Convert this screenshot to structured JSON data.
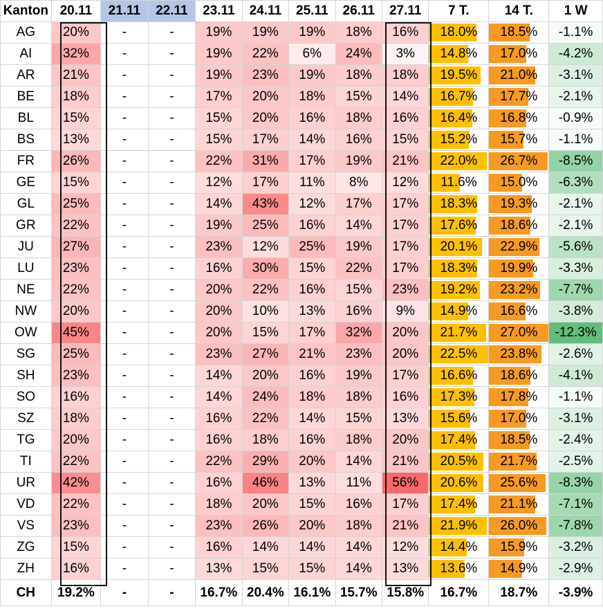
{
  "table": {
    "headers": [
      "Kanton",
      "20.11",
      "21.11",
      "22.11",
      "23.11",
      "24.11",
      "25.11",
      "26.11",
      "27.11",
      "7 T.",
      "14 T.",
      "1 W"
    ],
    "highlighted_headers": [
      "21.11",
      "22.11"
    ],
    "bar_scales": {
      "seven_day_max": 22.5,
      "fourteen_day_max": 27.0
    },
    "rows": [
      {
        "kanton": "AG",
        "daily": [
          "20%",
          "-",
          "-",
          "19%",
          "19%",
          "19%",
          "18%",
          "16%"
        ],
        "seven_day": "18.0%",
        "fourteen_day": "18.5%",
        "one_week": "-1.1%"
      },
      {
        "kanton": "AI",
        "daily": [
          "32%",
          "-",
          "-",
          "19%",
          "22%",
          "6%",
          "24%",
          "3%"
        ],
        "seven_day": "14.8%",
        "fourteen_day": "17.0%",
        "one_week": "-4.2%"
      },
      {
        "kanton": "AR",
        "daily": [
          "21%",
          "-",
          "-",
          "19%",
          "23%",
          "19%",
          "18%",
          "18%"
        ],
        "seven_day": "19.5%",
        "fourteen_day": "21.0%",
        "one_week": "-3.1%"
      },
      {
        "kanton": "BE",
        "daily": [
          "18%",
          "-",
          "-",
          "17%",
          "20%",
          "18%",
          "15%",
          "14%"
        ],
        "seven_day": "16.7%",
        "fourteen_day": "17.7%",
        "one_week": "-2.1%"
      },
      {
        "kanton": "BL",
        "daily": [
          "15%",
          "-",
          "-",
          "15%",
          "20%",
          "16%",
          "18%",
          "16%"
        ],
        "seven_day": "16.4%",
        "fourteen_day": "16.8%",
        "one_week": "-0.9%"
      },
      {
        "kanton": "BS",
        "daily": [
          "13%",
          "-",
          "-",
          "15%",
          "17%",
          "14%",
          "16%",
          "15%"
        ],
        "seven_day": "15.2%",
        "fourteen_day": "15.7%",
        "one_week": "-1.1%"
      },
      {
        "kanton": "FR",
        "daily": [
          "26%",
          "-",
          "-",
          "22%",
          "31%",
          "17%",
          "19%",
          "21%"
        ],
        "seven_day": "22.0%",
        "fourteen_day": "26.7%",
        "one_week": "-8.5%"
      },
      {
        "kanton": "GE",
        "daily": [
          "15%",
          "-",
          "-",
          "12%",
          "17%",
          "11%",
          "8%",
          "12%"
        ],
        "seven_day": "11.6%",
        "fourteen_day": "15.0%",
        "one_week": "-6.3%"
      },
      {
        "kanton": "GL",
        "daily": [
          "25%",
          "-",
          "-",
          "14%",
          "43%",
          "12%",
          "17%",
          "17%"
        ],
        "seven_day": "18.3%",
        "fourteen_day": "19.3%",
        "one_week": "-2.1%"
      },
      {
        "kanton": "GR",
        "daily": [
          "22%",
          "-",
          "-",
          "19%",
          "25%",
          "16%",
          "14%",
          "17%"
        ],
        "seven_day": "17.6%",
        "fourteen_day": "18.6%",
        "one_week": "-2.1%"
      },
      {
        "kanton": "JU",
        "daily": [
          "27%",
          "-",
          "-",
          "23%",
          "12%",
          "25%",
          "19%",
          "17%"
        ],
        "seven_day": "20.1%",
        "fourteen_day": "22.9%",
        "one_week": "-5.6%"
      },
      {
        "kanton": "LU",
        "daily": [
          "23%",
          "-",
          "-",
          "16%",
          "30%",
          "15%",
          "22%",
          "17%"
        ],
        "seven_day": "18.3%",
        "fourteen_day": "19.9%",
        "one_week": "-3.3%"
      },
      {
        "kanton": "NE",
        "daily": [
          "22%",
          "-",
          "-",
          "20%",
          "22%",
          "16%",
          "15%",
          "23%"
        ],
        "seven_day": "19.2%",
        "fourteen_day": "23.2%",
        "one_week": "-7.7%"
      },
      {
        "kanton": "NW",
        "daily": [
          "20%",
          "-",
          "-",
          "20%",
          "10%",
          "13%",
          "16%",
          "9%"
        ],
        "seven_day": "14.9%",
        "fourteen_day": "16.6%",
        "one_week": "-3.8%"
      },
      {
        "kanton": "OW",
        "daily": [
          "45%",
          "-",
          "-",
          "20%",
          "15%",
          "17%",
          "32%",
          "20%"
        ],
        "seven_day": "21.7%",
        "fourteen_day": "27.0%",
        "one_week": "-12.3%"
      },
      {
        "kanton": "SG",
        "daily": [
          "25%",
          "-",
          "-",
          "23%",
          "27%",
          "21%",
          "23%",
          "20%"
        ],
        "seven_day": "22.5%",
        "fourteen_day": "23.8%",
        "one_week": "-2.6%"
      },
      {
        "kanton": "SH",
        "daily": [
          "23%",
          "-",
          "-",
          "14%",
          "20%",
          "16%",
          "19%",
          "17%"
        ],
        "seven_day": "16.6%",
        "fourteen_day": "18.6%",
        "one_week": "-4.1%"
      },
      {
        "kanton": "SO",
        "daily": [
          "16%",
          "-",
          "-",
          "14%",
          "24%",
          "18%",
          "18%",
          "16%"
        ],
        "seven_day": "17.3%",
        "fourteen_day": "17.8%",
        "one_week": "-1.1%"
      },
      {
        "kanton": "SZ",
        "daily": [
          "18%",
          "-",
          "-",
          "16%",
          "22%",
          "14%",
          "15%",
          "13%"
        ],
        "seven_day": "15.6%",
        "fourteen_day": "17.0%",
        "one_week": "-3.1%"
      },
      {
        "kanton": "TG",
        "daily": [
          "20%",
          "-",
          "-",
          "16%",
          "18%",
          "16%",
          "18%",
          "20%"
        ],
        "seven_day": "17.4%",
        "fourteen_day": "18.5%",
        "one_week": "-2.4%"
      },
      {
        "kanton": "TI",
        "daily": [
          "22%",
          "-",
          "-",
          "22%",
          "29%",
          "20%",
          "14%",
          "21%"
        ],
        "seven_day": "20.5%",
        "fourteen_day": "21.7%",
        "one_week": "-2.5%"
      },
      {
        "kanton": "UR",
        "daily": [
          "42%",
          "-",
          "-",
          "16%",
          "46%",
          "13%",
          "11%",
          "56%"
        ],
        "seven_day": "20.6%",
        "fourteen_day": "25.6%",
        "one_week": "-8.3%"
      },
      {
        "kanton": "VD",
        "daily": [
          "22%",
          "-",
          "-",
          "18%",
          "20%",
          "15%",
          "16%",
          "17%"
        ],
        "seven_day": "17.4%",
        "fourteen_day": "21.1%",
        "one_week": "-7.1%"
      },
      {
        "kanton": "VS",
        "daily": [
          "23%",
          "-",
          "-",
          "23%",
          "26%",
          "20%",
          "18%",
          "21%"
        ],
        "seven_day": "21.9%",
        "fourteen_day": "26.0%",
        "one_week": "-7.8%"
      },
      {
        "kanton": "ZG",
        "daily": [
          "15%",
          "-",
          "-",
          "16%",
          "14%",
          "14%",
          "14%",
          "12%"
        ],
        "seven_day": "14.4%",
        "fourteen_day": "15.9%",
        "one_week": "-3.2%"
      },
      {
        "kanton": "ZH",
        "daily": [
          "16%",
          "-",
          "-",
          "13%",
          "15%",
          "15%",
          "14%",
          "13%"
        ],
        "seven_day": "13.6%",
        "fourteen_day": "14.9%",
        "one_week": "-2.9%"
      }
    ],
    "total": {
      "kanton": "CH",
      "daily": [
        "19.2%",
        "-",
        "-",
        "16.7%",
        "20.4%",
        "16.1%",
        "15.7%",
        "15.8%"
      ],
      "seven_day": "16.7%",
      "fourteen_day": "18.7%",
      "one_week": "-3.9%"
    }
  },
  "colors": {
    "heat_high": "#f8696b",
    "heat_low": "#ffffff",
    "bar_seven_day": "#ffc000",
    "bar_fourteen_day": "#f79a22",
    "change_strong": "#63be7b",
    "change_weak": "#ffffff",
    "header_highlight": "#b4c6e7"
  }
}
